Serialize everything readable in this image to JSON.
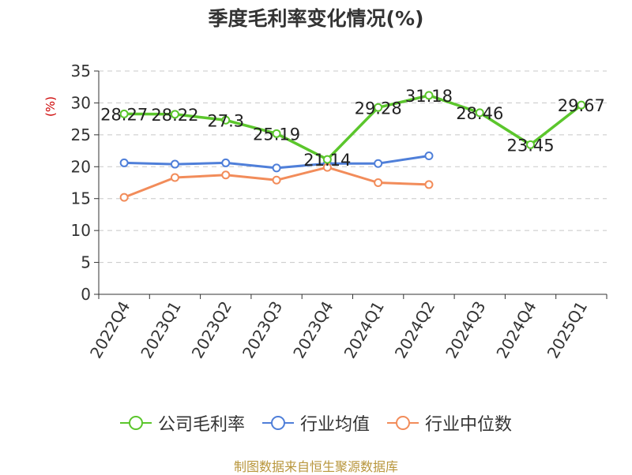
{
  "chart_data": {
    "type": "line",
    "title": "季度毛利率变化情况(%)",
    "ylabel": "(%)",
    "xlabel": "",
    "categories": [
      "2022Q4",
      "2023Q1",
      "2023Q2",
      "2023Q3",
      "2023Q4",
      "2024Q1",
      "2024Q2",
      "2024Q3",
      "2024Q4",
      "2025Q1"
    ],
    "ylim": [
      0,
      35
    ],
    "yticks": [
      0,
      5,
      10,
      15,
      20,
      25,
      30,
      35
    ],
    "grid": true,
    "legend_position": "bottom",
    "series": [
      {
        "name": "公司毛利率",
        "color": "#5bc62c",
        "values": [
          28.27,
          28.22,
          27.3,
          25.19,
          21.14,
          29.28,
          31.18,
          28.46,
          23.45,
          29.67
        ],
        "labels": [
          "28.27",
          "28.22",
          "27.3",
          "25.19",
          "21.14",
          "29.28",
          "31.18",
          "28.46",
          "23.45",
          "29.67"
        ]
      },
      {
        "name": "行业均值",
        "color": "#4f7fd9",
        "values": [
          20.6,
          20.4,
          20.6,
          19.8,
          20.5,
          20.5,
          21.7,
          null,
          null,
          null
        ]
      },
      {
        "name": "行业中位数",
        "color": "#f28c5a",
        "values": [
          15.2,
          18.3,
          18.7,
          17.9,
          19.9,
          17.5,
          17.2,
          null,
          null,
          null
        ]
      }
    ]
  },
  "source": "制图数据来自恒生聚源数据库"
}
